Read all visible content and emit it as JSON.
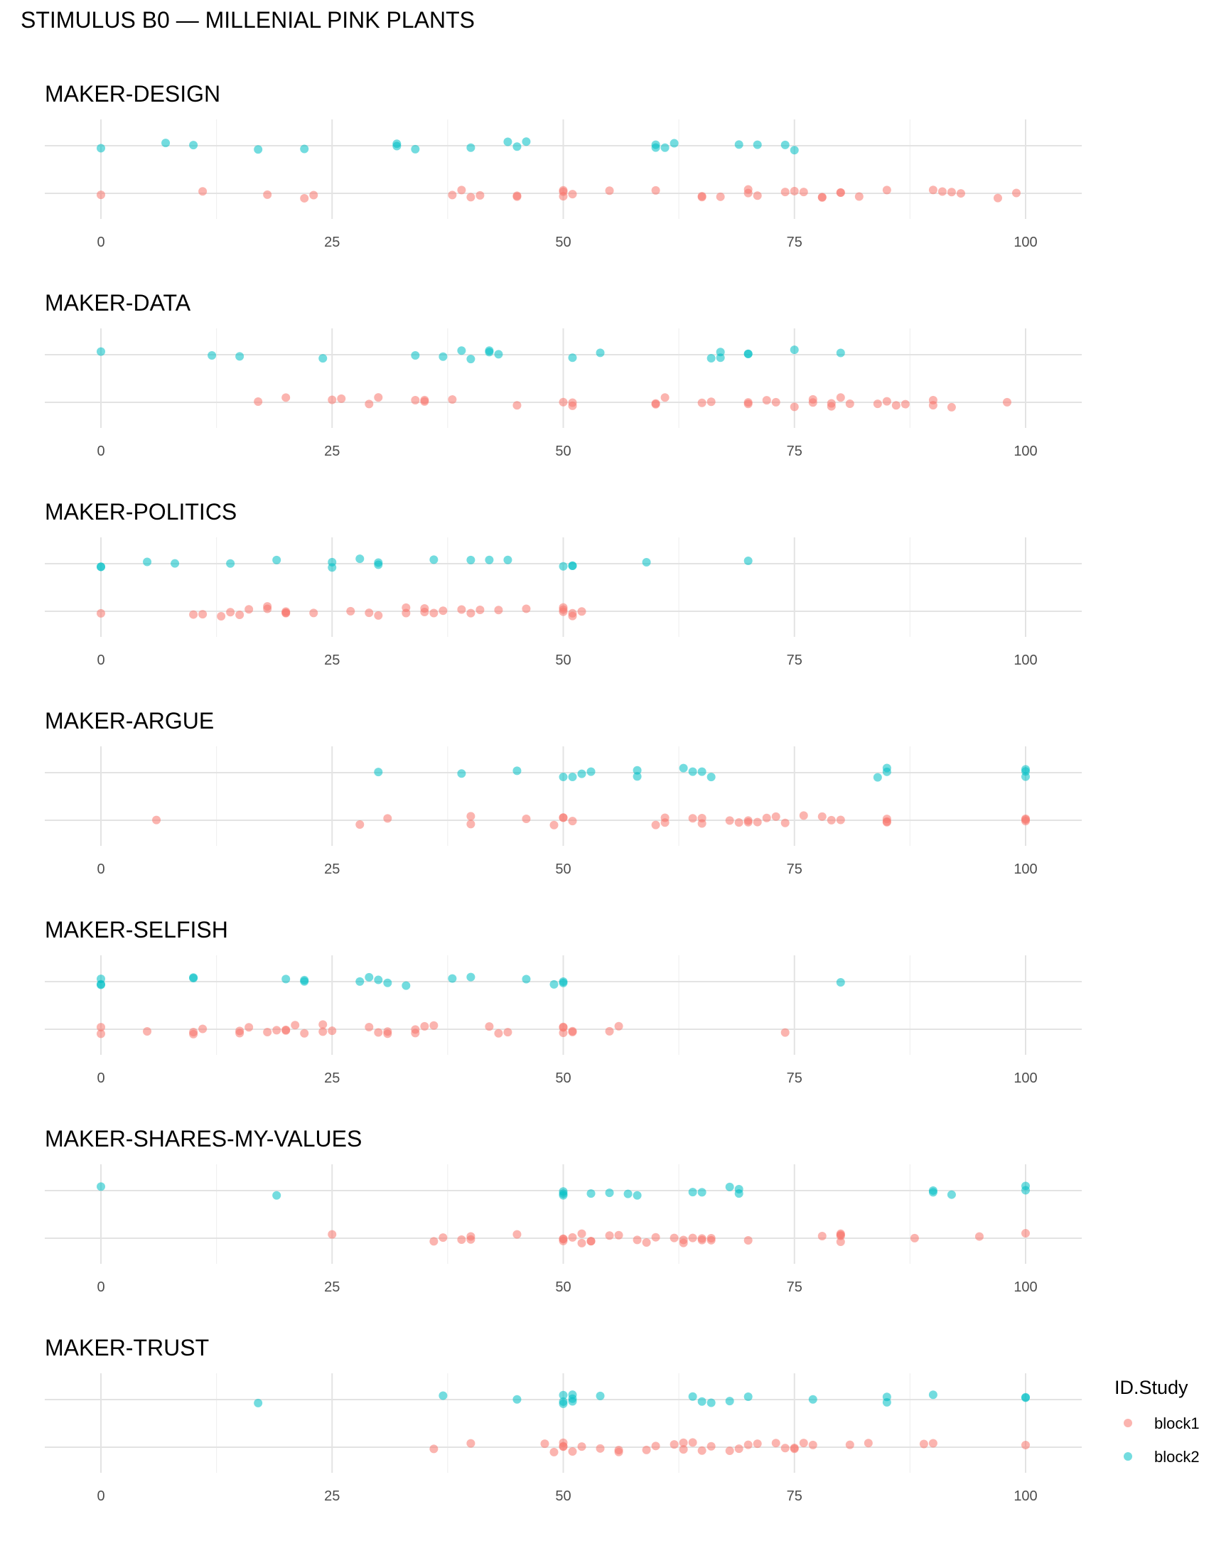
{
  "chart_data": {
    "type": "scatter",
    "title": "STIMULUS B0 — MILLENIAL PINK PLANTS",
    "xlim": [
      0,
      100
    ],
    "x_ticks": [
      0,
      25,
      50,
      75,
      100
    ],
    "x_tick_labels": [
      "0",
      "25",
      "50",
      "75",
      "100"
    ],
    "grid": true,
    "legend": {
      "title": "ID.Study",
      "position": "right",
      "entries": [
        {
          "name": "block1",
          "color": "#F8766D"
        },
        {
          "name": "block2",
          "color": "#00BFC4"
        }
      ]
    },
    "panels": [
      {
        "title": "MAKER-DESIGN",
        "series": [
          {
            "name": "block1",
            "color": "#F8766D",
            "x": [
              0,
              11,
              18,
              22,
              23,
              38,
              39,
              40,
              41,
              45,
              45,
              50,
              50,
              50,
              51,
              55,
              60,
              65,
              65,
              67,
              70,
              70,
              71,
              74,
              75,
              76,
              78,
              78,
              80,
              80,
              82,
              85,
              90,
              91,
              92,
              93,
              97,
              99
            ]
          },
          {
            "name": "block2",
            "color": "#00BFC4",
            "x": [
              0,
              7,
              10,
              17,
              22,
              32,
              32,
              34,
              40,
              44,
              45,
              46,
              60,
              60,
              61,
              62,
              69,
              71,
              74,
              75
            ]
          }
        ]
      },
      {
        "title": "MAKER-DATA",
        "series": [
          {
            "name": "block1",
            "color": "#F8766D",
            "x": [
              17,
              20,
              25,
              26,
              29,
              30,
              34,
              35,
              35,
              38,
              45,
              50,
              51,
              51,
              60,
              60,
              61,
              65,
              66,
              70,
              70,
              72,
              73,
              75,
              77,
              77,
              79,
              79,
              80,
              81,
              84,
              85,
              86,
              87,
              90,
              90,
              92,
              98
            ]
          },
          {
            "name": "block2",
            "color": "#00BFC4",
            "x": [
              0,
              12,
              15,
              24,
              34,
              37,
              39,
              40,
              42,
              42,
              43,
              51,
              54,
              66,
              67,
              67,
              70,
              70,
              75,
              80
            ]
          }
        ]
      },
      {
        "title": "MAKER-POLITICS",
        "series": [
          {
            "name": "block1",
            "color": "#F8766D",
            "x": [
              0,
              10,
              11,
              13,
              14,
              15,
              16,
              18,
              18,
              20,
              20,
              20,
              23,
              27,
              29,
              30,
              33,
              33,
              35,
              35,
              36,
              37,
              39,
              40,
              41,
              43,
              46,
              50,
              50,
              50,
              51,
              51,
              52
            ]
          },
          {
            "name": "block2",
            "color": "#00BFC4",
            "x": [
              0,
              0,
              5,
              8,
              14,
              19,
              25,
              25,
              28,
              30,
              30,
              36,
              40,
              42,
              44,
              50,
              51,
              51,
              59,
              70
            ]
          }
        ]
      },
      {
        "title": "MAKER-ARGUE",
        "series": [
          {
            "name": "block1",
            "color": "#F8766D",
            "x": [
              6,
              28,
              31,
              40,
              40,
              46,
              49,
              50,
              50,
              51,
              60,
              61,
              61,
              64,
              65,
              65,
              68,
              69,
              70,
              70,
              71,
              72,
              73,
              74,
              76,
              78,
              79,
              80,
              85,
              85,
              85,
              100,
              100,
              100
            ]
          },
          {
            "name": "block2",
            "color": "#00BFC4",
            "x": [
              30,
              39,
              45,
              50,
              51,
              52,
              53,
              58,
              58,
              63,
              64,
              65,
              66,
              84,
              85,
              85,
              100,
              100,
              100
            ]
          }
        ]
      },
      {
        "title": "MAKER-SELFISH",
        "series": [
          {
            "name": "block1",
            "color": "#F8766D",
            "x": [
              0,
              0,
              5,
              10,
              10,
              11,
              15,
              15,
              16,
              18,
              19,
              20,
              20,
              21,
              22,
              24,
              24,
              25,
              29,
              30,
              31,
              31,
              34,
              34,
              35,
              36,
              42,
              43,
              44,
              50,
              50,
              50,
              51,
              51,
              55,
              56,
              74
            ]
          },
          {
            "name": "block2",
            "color": "#00BFC4",
            "x": [
              0,
              0,
              0,
              10,
              10,
              20,
              22,
              22,
              28,
              29,
              30,
              31,
              33,
              38,
              40,
              46,
              49,
              50,
              50,
              80
            ]
          }
        ]
      },
      {
        "title": "MAKER-SHARES-MY-VALUES",
        "series": [
          {
            "name": "block1",
            "color": "#F8766D",
            "x": [
              25,
              36,
              37,
              39,
              40,
              40,
              45,
              50,
              50,
              50,
              51,
              52,
              52,
              53,
              53,
              55,
              56,
              58,
              59,
              60,
              62,
              63,
              63,
              64,
              65,
              65,
              66,
              66,
              70,
              78,
              80,
              80,
              80,
              80,
              88,
              95,
              100
            ]
          },
          {
            "name": "block2",
            "color": "#00BFC4",
            "x": [
              0,
              19,
              50,
              50,
              50,
              53,
              55,
              57,
              58,
              64,
              65,
              68,
              69,
              69,
              90,
              90,
              92,
              100,
              100
            ]
          }
        ]
      },
      {
        "title": "MAKER-TRUST",
        "series": [
          {
            "name": "block1",
            "color": "#F8766D",
            "x": [
              36,
              40,
              48,
              49,
              50,
              50,
              50,
              51,
              52,
              54,
              56,
              56,
              59,
              60,
              62,
              63,
              63,
              64,
              65,
              66,
              68,
              69,
              70,
              71,
              73,
              74,
              75,
              75,
              76,
              77,
              81,
              83,
              89,
              90,
              100
            ]
          },
          {
            "name": "block2",
            "color": "#00BFC4",
            "x": [
              17,
              37,
              45,
              50,
              50,
              50,
              51,
              51,
              51,
              54,
              64,
              65,
              66,
              68,
              70,
              77,
              85,
              85,
              90,
              100,
              100
            ]
          }
        ]
      }
    ]
  }
}
